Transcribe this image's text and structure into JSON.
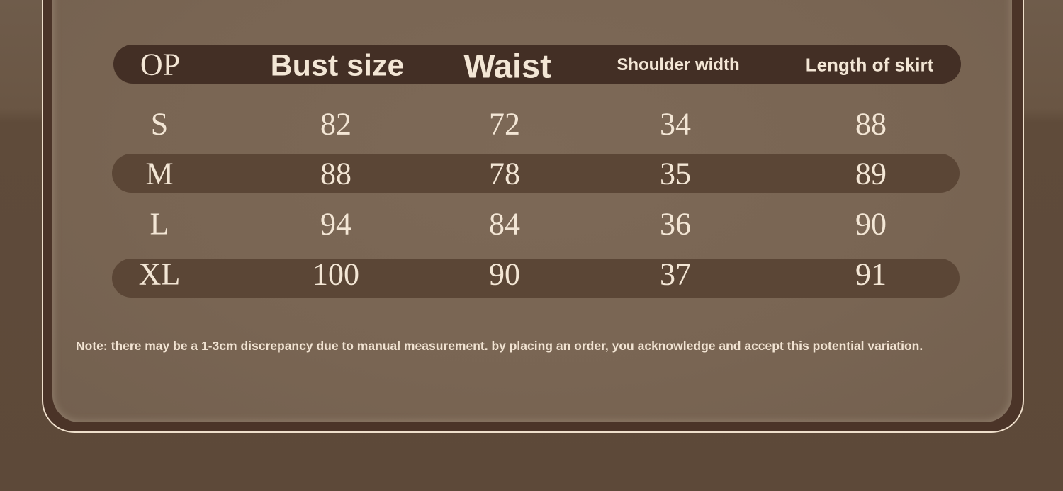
{
  "colors": {
    "header_bg": "#432f25",
    "row_stripe": "#5b4636",
    "panel": "#7a6654",
    "text": "#f3e6d5"
  },
  "table": {
    "headers": [
      "OP",
      "Bust size",
      "Waist",
      "Shoulder width",
      "Length of skirt"
    ],
    "rows": [
      [
        "S",
        "82",
        "72",
        "34",
        "88"
      ],
      [
        "M",
        "88",
        "78",
        "35",
        "89"
      ],
      [
        "L",
        "94",
        "84",
        "36",
        "90"
      ],
      [
        "XL",
        "100",
        "90",
        "37",
        "91"
      ]
    ]
  },
  "note": "Note: there may be a 1-3cm discrepancy due to manual measurement. by placing an order, you acknowledge and accept this potential variation."
}
